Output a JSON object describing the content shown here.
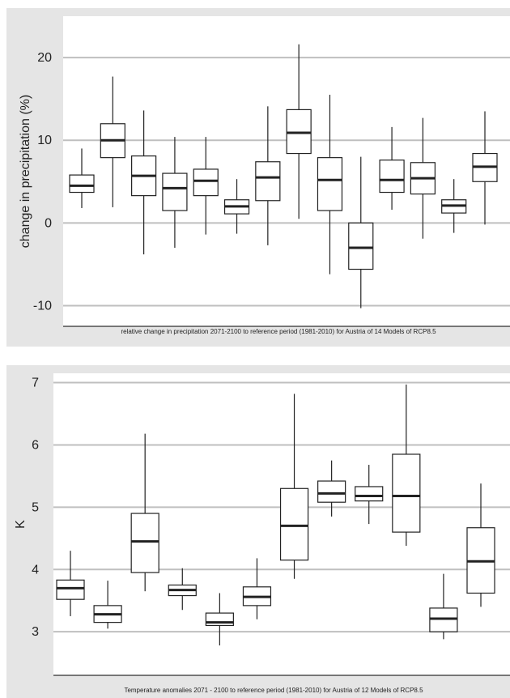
{
  "chart_data": [
    {
      "type": "boxplot",
      "ylabel": "change in precipitation (%)",
      "caption": "relative change in precipitation 2071-2100 to reference period (1981-2010) for Austria of 14 Models of RCP8.5",
      "ylim": [
        -12.5,
        25
      ],
      "yticks": [
        20,
        10,
        0,
        -10
      ],
      "ytick_labels": [
        "20",
        "10",
        "0",
        "-10"
      ],
      "grid": true,
      "boxes": [
        {
          "min": 1.8,
          "q1": 3.7,
          "median": 4.5,
          "q3": 5.8,
          "max": 9.0
        },
        {
          "min": 1.9,
          "q1": 7.9,
          "median": 10.0,
          "q3": 12.0,
          "max": 17.7
        },
        {
          "min": -3.8,
          "q1": 3.3,
          "median": 5.7,
          "q3": 8.1,
          "max": 13.6
        },
        {
          "min": -3.0,
          "q1": 1.5,
          "median": 4.2,
          "q3": 6.0,
          "max": 10.4
        },
        {
          "min": -1.4,
          "q1": 3.3,
          "median": 5.1,
          "q3": 6.5,
          "max": 10.4
        },
        {
          "min": -1.3,
          "q1": 1.1,
          "median": 2.0,
          "q3": 2.8,
          "max": 5.3
        },
        {
          "min": -2.7,
          "q1": 2.7,
          "median": 5.5,
          "q3": 7.4,
          "max": 14.1
        },
        {
          "min": 0.5,
          "q1": 8.4,
          "median": 10.9,
          "q3": 13.7,
          "max": 21.6
        },
        {
          "min": -6.2,
          "q1": 1.5,
          "median": 5.2,
          "q3": 7.9,
          "max": 15.5
        },
        {
          "min": -10.3,
          "q1": -5.6,
          "median": -3.0,
          "q3": 0.0,
          "max": 8.0
        },
        {
          "min": 1.6,
          "q1": 3.7,
          "median": 5.2,
          "q3": 7.6,
          "max": 11.6
        },
        {
          "min": -1.9,
          "q1": 3.5,
          "median": 5.4,
          "q3": 7.3,
          "max": 12.7
        },
        {
          "min": -1.2,
          "q1": 1.2,
          "median": 2.1,
          "q3": 2.8,
          "max": 5.3
        },
        {
          "min": -0.2,
          "q1": 5.0,
          "median": 6.8,
          "q3": 8.4,
          "max": 13.5
        }
      ]
    },
    {
      "type": "boxplot",
      "ylabel": "K",
      "caption": "Temperature anomalies 2071 - 2100 to reference period (1981-2010) for Austria of 12 Models of RCP8.5",
      "ylim": [
        2.3,
        7.15
      ],
      "yticks": [
        7,
        6,
        5,
        4,
        3
      ],
      "ytick_labels": [
        "7",
        "6",
        "5",
        "4",
        "3"
      ],
      "grid": true,
      "boxes": [
        {
          "min": 3.25,
          "q1": 3.52,
          "median": 3.7,
          "q3": 3.83,
          "max": 4.3
        },
        {
          "min": 3.05,
          "q1": 3.15,
          "median": 3.28,
          "q3": 3.42,
          "max": 3.82
        },
        {
          "min": 3.65,
          "q1": 3.95,
          "median": 4.45,
          "q3": 4.9,
          "max": 6.18
        },
        {
          "min": 3.35,
          "q1": 3.58,
          "median": 3.67,
          "q3": 3.75,
          "max": 4.02
        },
        {
          "min": 2.78,
          "q1": 3.1,
          "median": 3.15,
          "q3": 3.3,
          "max": 3.62
        },
        {
          "min": 3.2,
          "q1": 3.42,
          "median": 3.56,
          "q3": 3.72,
          "max": 4.18
        },
        {
          "min": 3.85,
          "q1": 4.15,
          "median": 4.7,
          "q3": 5.3,
          "max": 6.82
        },
        {
          "min": 4.85,
          "q1": 5.08,
          "median": 5.22,
          "q3": 5.42,
          "max": 5.75
        },
        {
          "min": 4.73,
          "q1": 5.1,
          "median": 5.18,
          "q3": 5.33,
          "max": 5.68
        },
        {
          "min": 4.38,
          "q1": 4.6,
          "median": 5.18,
          "q3": 5.85,
          "max": 6.97
        },
        {
          "min": 2.88,
          "q1": 3.0,
          "median": 3.21,
          "q3": 3.38,
          "max": 3.93
        },
        {
          "min": 3.4,
          "q1": 3.62,
          "median": 4.13,
          "q3": 4.67,
          "max": 5.38
        }
      ]
    }
  ]
}
